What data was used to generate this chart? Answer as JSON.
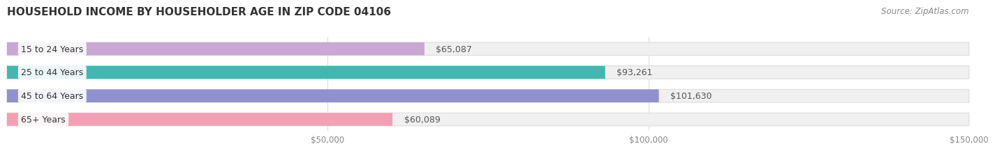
{
  "title": "HOUSEHOLD INCOME BY HOUSEHOLDER AGE IN ZIP CODE 04106",
  "source": "Source: ZipAtlas.com",
  "categories": [
    "15 to 24 Years",
    "25 to 44 Years",
    "45 to 64 Years",
    "65+ Years"
  ],
  "values": [
    65087,
    93261,
    101630,
    60089
  ],
  "value_labels": [
    "$65,087",
    "$93,261",
    "$101,630",
    "$60,089"
  ],
  "bar_colors": [
    "#c9a8d4",
    "#40b8b0",
    "#9090d0",
    "#f4a0b4"
  ],
  "bar_bg_color": "#f0f0f0",
  "bar_border_color": "#dddddd",
  "xlim": [
    0,
    150000
  ],
  "xticks": [
    50000,
    100000,
    150000
  ],
  "xtick_labels": [
    "$50,000",
    "$100,000",
    "$150,000"
  ],
  "background_color": "#ffffff",
  "title_fontsize": 11,
  "source_fontsize": 8.5,
  "label_fontsize": 9,
  "tick_fontsize": 8.5,
  "bar_height": 0.55,
  "label_color": "#555555",
  "tick_color": "#888888",
  "grid_color": "#dddddd"
}
